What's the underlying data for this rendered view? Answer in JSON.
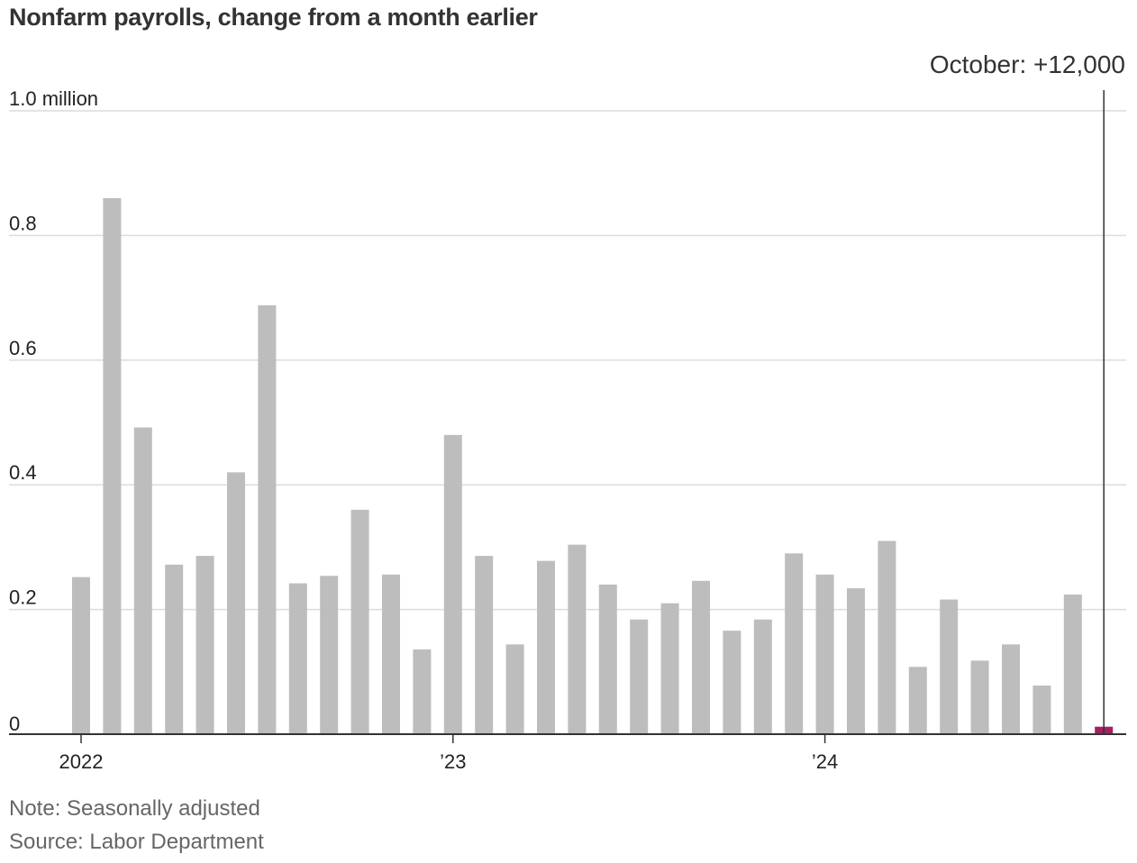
{
  "title": "Nonfarm payrolls, change from a month earlier",
  "note": "Note: Seasonally adjusted",
  "source": "Source: Labor Department",
  "colors": {
    "bar": "#bdbdbd",
    "highlight": "#a3215f",
    "grid": "#dcdcdc",
    "axis": "#333333"
  },
  "chart_data": {
    "type": "bar",
    "title": "Nonfarm payrolls, change from a month earlier",
    "unit": "million",
    "ylim": [
      0,
      1.0
    ],
    "yticks": [
      0,
      0.2,
      0.4,
      0.6,
      0.8,
      1.0
    ],
    "ytick_labels": [
      "0",
      "0.2",
      "0.4",
      "0.6",
      "0.8",
      "1.0 million"
    ],
    "grid": true,
    "xtick_labels": [
      {
        "label": "2022",
        "month": "2022-01"
      },
      {
        "label": "’23",
        "month": "2023-01"
      },
      {
        "label": "’24",
        "month": "2024-01"
      }
    ],
    "categories": [
      "2022-01",
      "2022-02",
      "2022-03",
      "2022-04",
      "2022-05",
      "2022-06",
      "2022-07",
      "2022-08",
      "2022-09",
      "2022-10",
      "2022-11",
      "2022-12",
      "2023-01",
      "2023-02",
      "2023-03",
      "2023-04",
      "2023-05",
      "2023-06",
      "2023-07",
      "2023-08",
      "2023-09",
      "2023-10",
      "2023-11",
      "2023-12",
      "2024-01",
      "2024-02",
      "2024-03",
      "2024-04",
      "2024-05",
      "2024-06",
      "2024-07",
      "2024-08",
      "2024-09",
      "2024-10"
    ],
    "values": [
      0.252,
      0.86,
      0.492,
      0.272,
      0.286,
      0.42,
      0.688,
      0.242,
      0.254,
      0.36,
      0.256,
      0.136,
      0.48,
      0.286,
      0.144,
      0.278,
      0.304,
      0.24,
      0.184,
      0.21,
      0.246,
      0.166,
      0.184,
      0.29,
      0.256,
      0.234,
      0.31,
      0.108,
      0.216,
      0.118,
      0.144,
      0.078,
      0.224,
      0.012
    ],
    "highlight": {
      "month": "2024-10",
      "label": "October: +12,000"
    }
  }
}
